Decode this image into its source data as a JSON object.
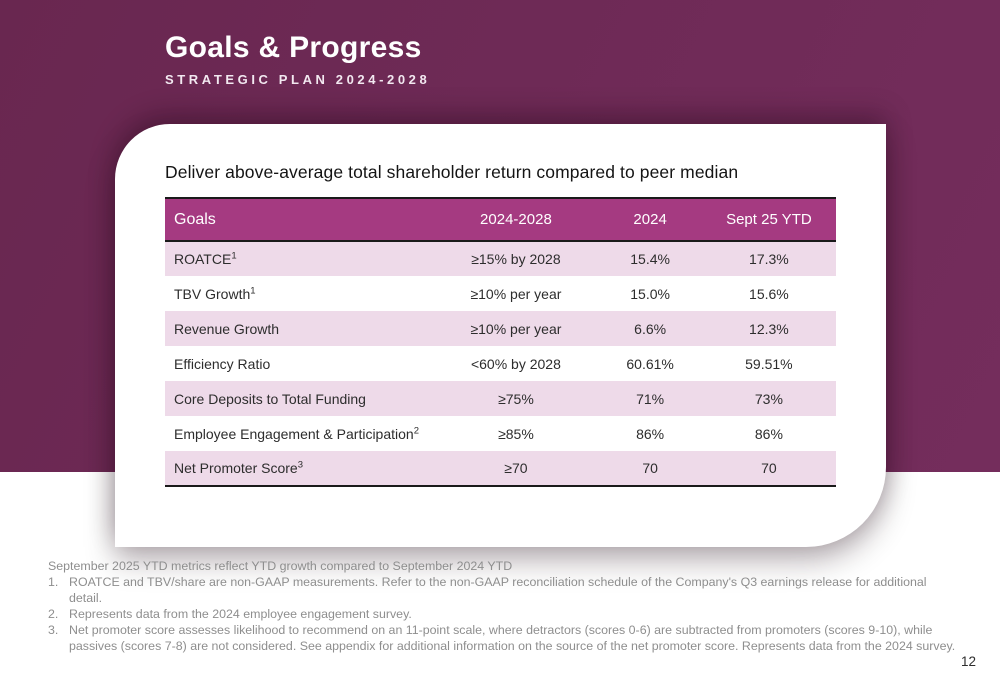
{
  "slide": {
    "title": "Goals & Progress",
    "subtitle": "STRATEGIC PLAN 2024-2028",
    "page_number": "12"
  },
  "card": {
    "heading": "Deliver above-average total shareholder return compared to peer median",
    "table": {
      "columns": [
        "Goals",
        "2024-2028",
        "2024",
        "Sept 25 YTD"
      ],
      "rows": [
        {
          "goal": "ROATCE",
          "sup": "1",
          "target": "≥15% by 2028",
          "y2024": "15.4%",
          "sept25_ytd": "17.3%"
        },
        {
          "goal": "TBV Growth",
          "sup": "1",
          "target": "≥10% per year",
          "y2024": "15.0%",
          "sept25_ytd": "15.6%"
        },
        {
          "goal": "Revenue Growth",
          "sup": "",
          "target": "≥10% per year",
          "y2024": "6.6%",
          "sept25_ytd": "12.3%"
        },
        {
          "goal": "Efficiency Ratio",
          "sup": "",
          "target": "<60% by 2028",
          "y2024": "60.61%",
          "sept25_ytd": "59.51%"
        },
        {
          "goal": "Core Deposits to Total Funding",
          "sup": "",
          "target": "≥75%",
          "y2024": "71%",
          "sept25_ytd": "73%"
        },
        {
          "goal": "Employee Engagement & Participation",
          "sup": "2",
          "target": "≥85%",
          "y2024": "86%",
          "sept25_ytd": "86%"
        },
        {
          "goal": "Net Promoter Score",
          "sup": "3",
          "target": "≥70",
          "y2024": "70",
          "sept25_ytd": "70"
        }
      ]
    }
  },
  "footnotes": {
    "intro": "September 2025 YTD metrics reflect YTD growth compared to September 2024 YTD",
    "items": [
      {
        "num": "1.",
        "text": "ROATCE and TBV/share are non-GAAP measurements. Refer to the non-GAAP reconciliation schedule of the Company's Q3 earnings release for additional detail."
      },
      {
        "num": "2.",
        "text": "Represents data from the 2024 employee engagement survey."
      },
      {
        "num": "3.",
        "text": "Net promoter score assesses likelihood to recommend on an 11-point scale, where detractors (scores 0-6) are subtracted from promoters (scores 9-10), while passives (scores 7-8) are not considered. See appendix for additional information on the source of the net promoter score. Represents data from the 2024 survey."
      }
    ]
  },
  "colors": {
    "background_purple": "#6E2A56",
    "table_header_magenta": "#A53A81",
    "row_pink": "#EEDAE9",
    "border_black": "#1A1A1A",
    "footnote_gray": "#8E8E8E"
  }
}
